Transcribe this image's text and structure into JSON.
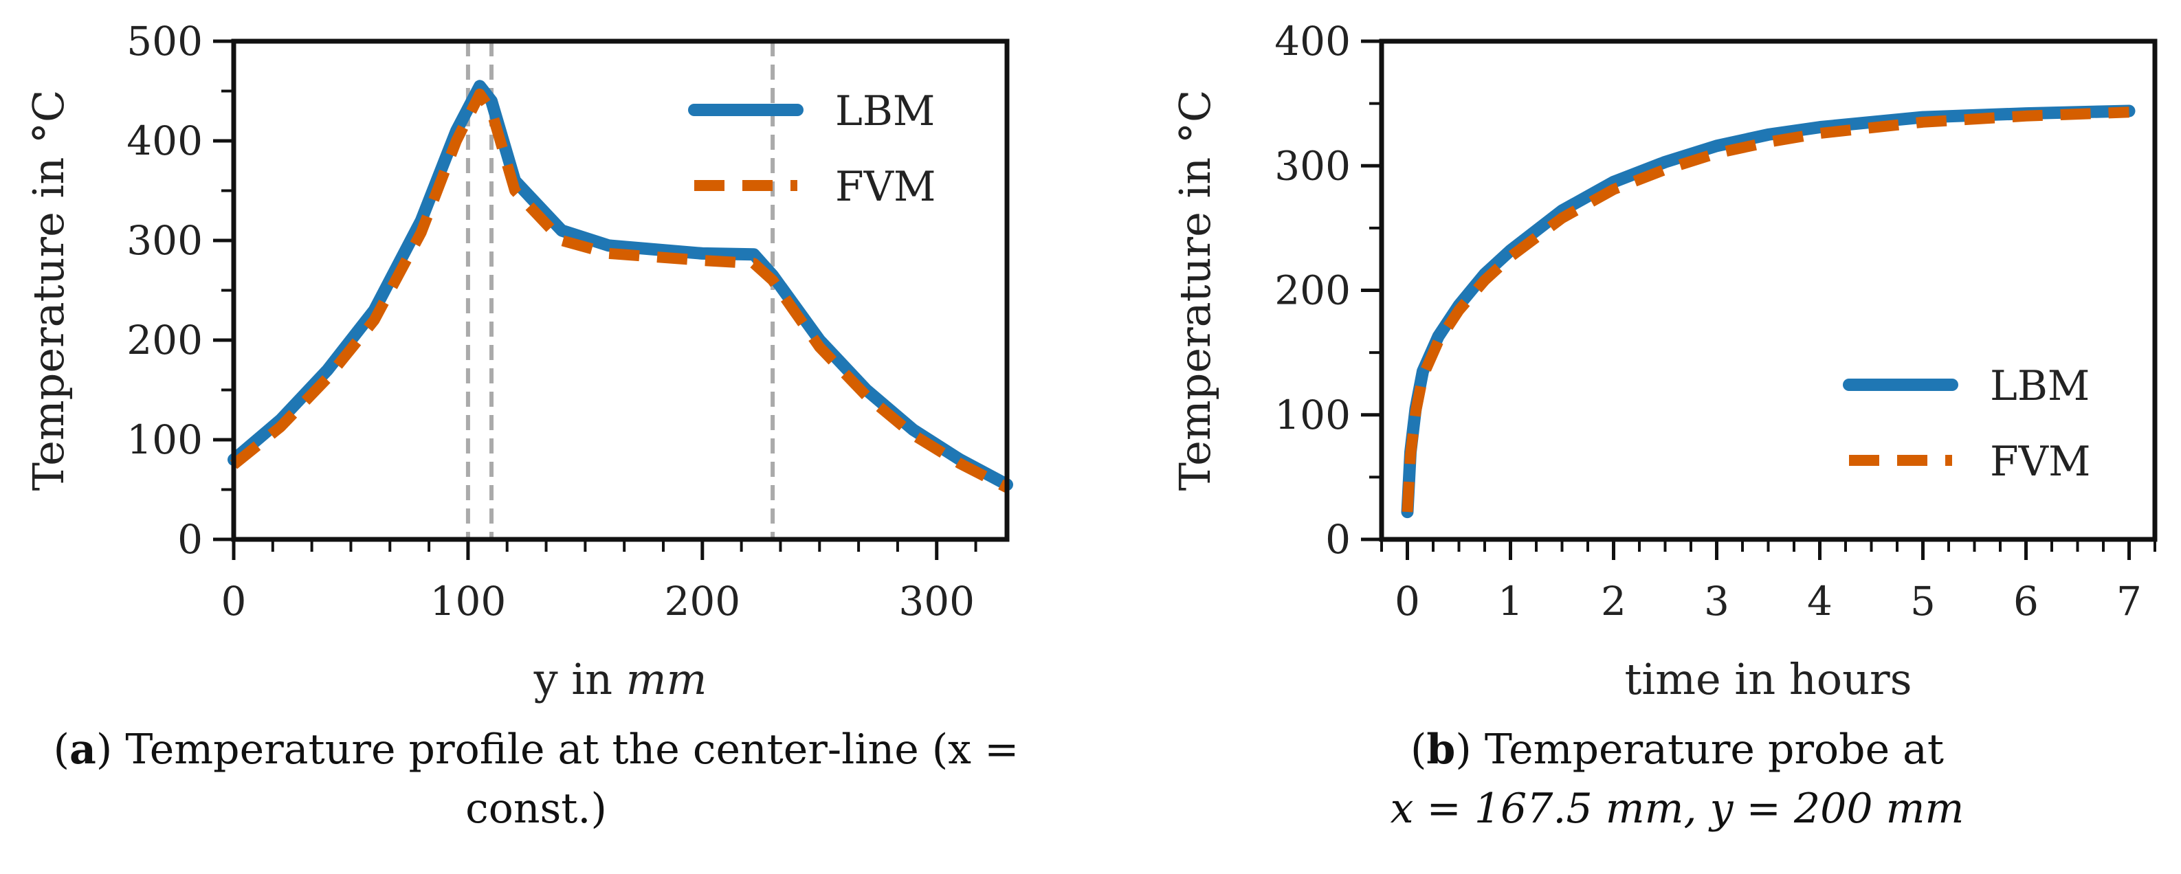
{
  "chart_data": [
    {
      "id": "a",
      "type": "line",
      "xlabel": "y in",
      "xlabel_unit": "mm",
      "ylabel": "Temperature in °C",
      "xlim": [
        0,
        330
      ],
      "ylim": [
        0,
        500
      ],
      "xticks": [
        0,
        100,
        200,
        300
      ],
      "yticks": [
        0,
        100,
        200,
        300,
        400,
        500
      ],
      "vlines": [
        100,
        110,
        230
      ],
      "legend": "top-right",
      "series": [
        {
          "name": "LBM",
          "color": "#1f77b4",
          "style": "solid",
          "x": [
            0,
            20,
            40,
            60,
            80,
            95,
            105,
            110,
            120,
            140,
            160,
            200,
            222,
            230,
            250,
            270,
            290,
            310,
            330
          ],
          "y": [
            80,
            120,
            170,
            230,
            320,
            410,
            455,
            440,
            360,
            310,
            295,
            287,
            286,
            265,
            200,
            150,
            110,
            80,
            55
          ]
        },
        {
          "name": "FVM",
          "color": "#d55e00",
          "style": "dashed",
          "x": [
            0,
            20,
            40,
            60,
            80,
            95,
            105,
            110,
            120,
            140,
            160,
            200,
            222,
            230,
            250,
            270,
            290,
            310,
            330
          ],
          "y": [
            75,
            113,
            162,
            220,
            308,
            400,
            447,
            430,
            350,
            300,
            287,
            280,
            277,
            260,
            193,
            144,
            105,
            76,
            52
          ]
        }
      ],
      "caption_label": "a",
      "caption_text": "Temperature profile at the center-line (x =",
      "caption_text_2": "const.)"
    },
    {
      "id": "b",
      "type": "line",
      "xlabel": "time in hours",
      "ylabel": "Temperature in °C",
      "xlim": [
        -0.25,
        7.25
      ],
      "ylim": [
        0,
        400
      ],
      "xticks": [
        0,
        1,
        2,
        3,
        4,
        5,
        6,
        7
      ],
      "yticks": [
        0,
        100,
        200,
        300,
        400
      ],
      "legend": "bottom-right",
      "series": [
        {
          "name": "LBM",
          "color": "#1f77b4",
          "style": "solid",
          "x": [
            0,
            0.03,
            0.08,
            0.15,
            0.3,
            0.5,
            0.75,
            1.0,
            1.5,
            2.0,
            2.5,
            3.0,
            3.5,
            4.0,
            5.0,
            6.0,
            7.0
          ],
          "y": [
            22,
            70,
            105,
            135,
            163,
            188,
            213,
            232,
            264,
            287,
            303,
            316,
            325,
            331,
            339,
            342,
            344
          ]
        },
        {
          "name": "FVM",
          "color": "#d55e00",
          "style": "dashed",
          "x": [
            0,
            0.03,
            0.08,
            0.15,
            0.3,
            0.5,
            0.75,
            1.0,
            1.5,
            2.0,
            2.5,
            3.0,
            3.5,
            4.0,
            5.0,
            6.0,
            7.0
          ],
          "y": [
            22,
            68,
            102,
            131,
            159,
            184,
            208,
            227,
            258,
            281,
            297,
            310,
            319,
            326,
            335,
            340,
            343
          ]
        }
      ],
      "caption_label": "b",
      "caption_text": "Temperature probe at",
      "caption_line2": "x = 167.5 mm, y = 200 mm"
    }
  ]
}
